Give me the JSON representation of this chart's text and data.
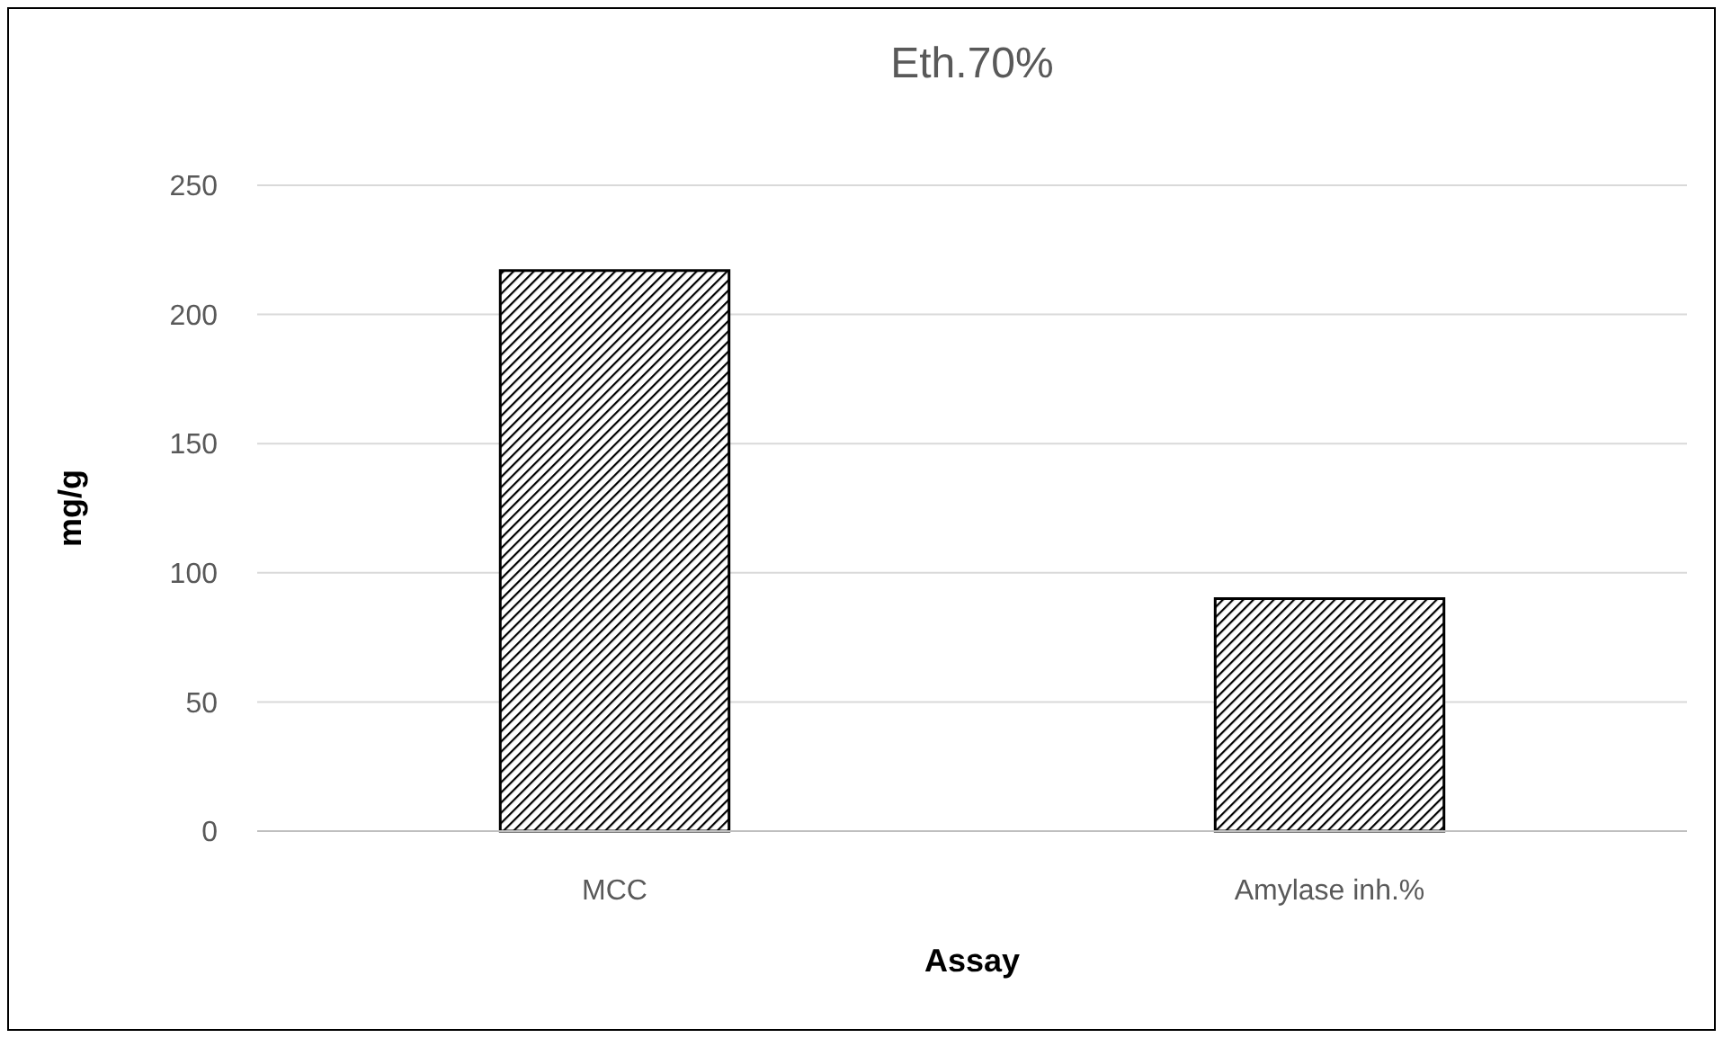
{
  "chart_data": {
    "type": "bar",
    "title": "Eth.70%",
    "xlabel": "Assay",
    "ylabel": "mg/g",
    "categories": [
      "MCC",
      "Amylase inh.%"
    ],
    "values": [
      217,
      90
    ],
    "color": "#000000",
    "ylim": [
      0,
      250
    ],
    "yticks": [
      0,
      50,
      100,
      150,
      200,
      250
    ],
    "grid": "y"
  }
}
